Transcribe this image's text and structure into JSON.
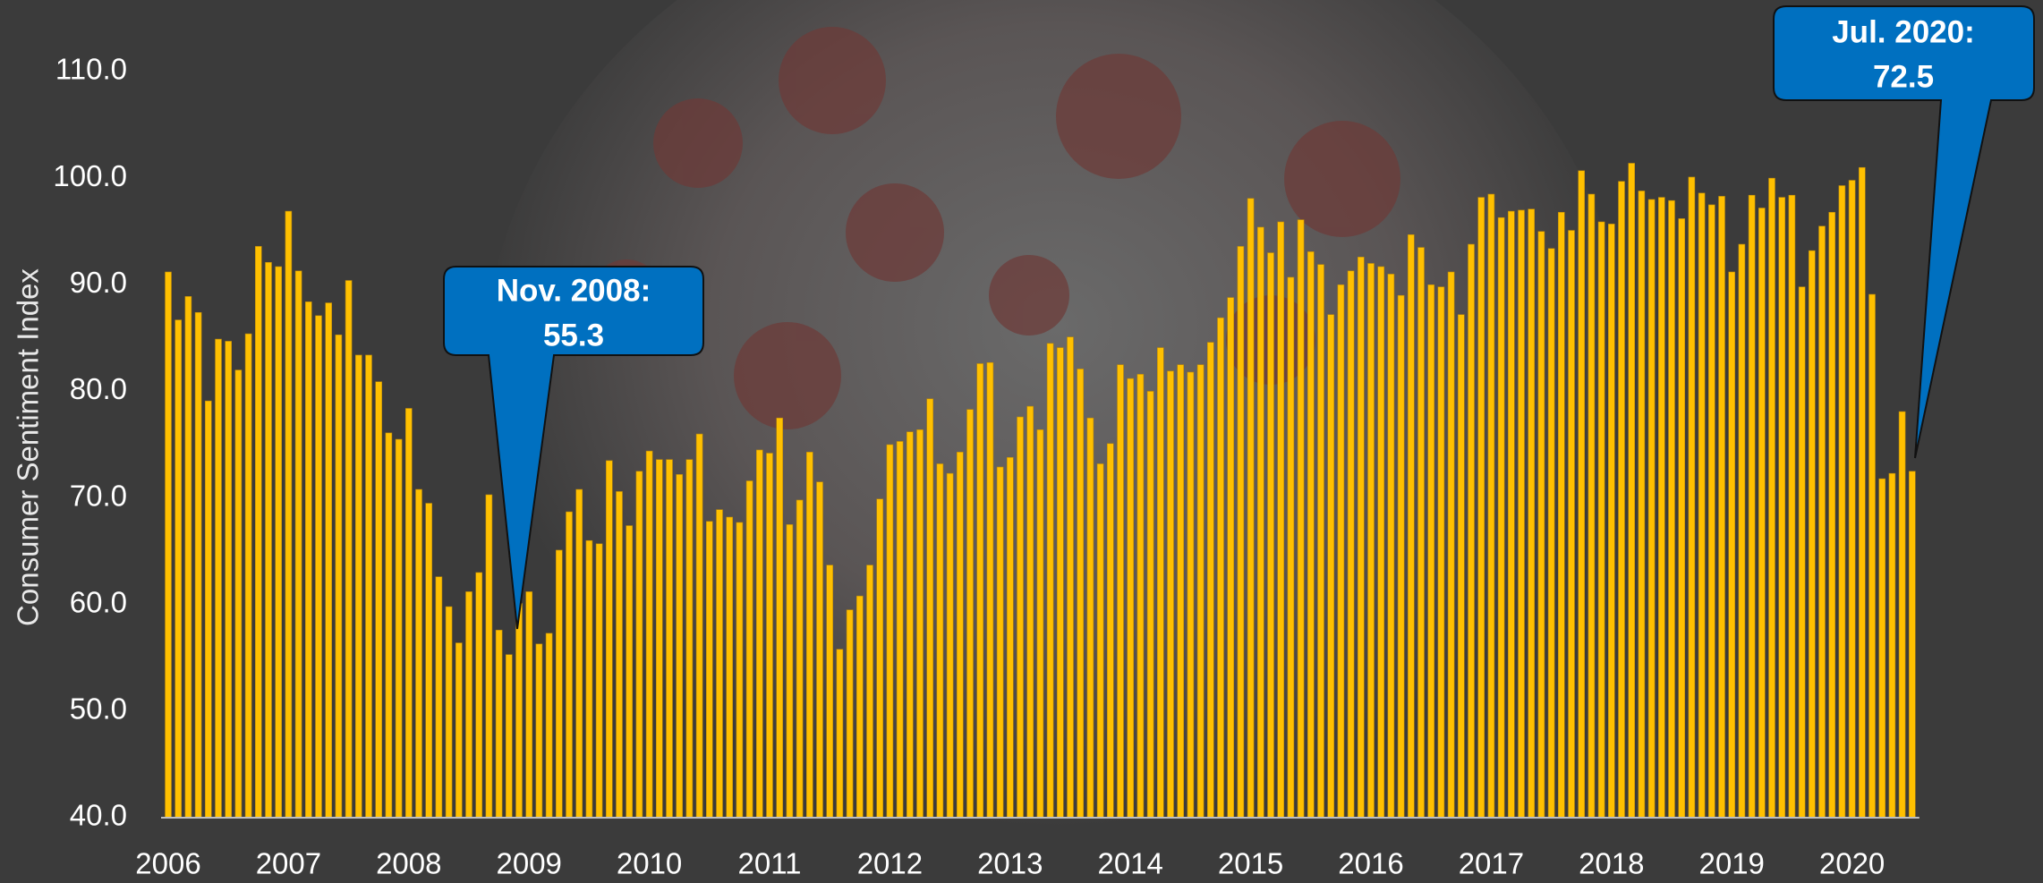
{
  "chart_data": {
    "type": "bar",
    "y_label": "Consumer Sentiment Index",
    "categories": [
      "2006",
      null,
      null,
      null,
      null,
      null,
      null,
      null,
      null,
      null,
      null,
      null,
      "2007",
      null,
      null,
      null,
      null,
      null,
      null,
      null,
      null,
      null,
      null,
      null,
      "2008",
      null,
      null,
      null,
      null,
      null,
      null,
      null,
      null,
      null,
      null,
      null,
      "2009",
      null,
      null,
      null,
      null,
      null,
      null,
      null,
      null,
      null,
      null,
      null,
      "2010",
      null,
      null,
      null,
      null,
      null,
      null,
      null,
      null,
      null,
      null,
      null,
      "2011",
      null,
      null,
      null,
      null,
      null,
      null,
      null,
      null,
      null,
      null,
      null,
      "2012",
      null,
      null,
      null,
      null,
      null,
      null,
      null,
      null,
      null,
      null,
      null,
      "2013",
      null,
      null,
      null,
      null,
      null,
      null,
      null,
      null,
      null,
      null,
      null,
      "2014",
      null,
      null,
      null,
      null,
      null,
      null,
      null,
      null,
      null,
      null,
      null,
      "2015",
      null,
      null,
      null,
      null,
      null,
      null,
      null,
      null,
      null,
      null,
      null,
      "2016",
      null,
      null,
      null,
      null,
      null,
      null,
      null,
      null,
      null,
      null,
      null,
      "2017",
      null,
      null,
      null,
      null,
      null,
      null,
      null,
      null,
      null,
      null,
      null,
      "2018",
      null,
      null,
      null,
      null,
      null,
      null,
      null,
      null,
      null,
      null,
      null,
      "2019",
      null,
      null,
      null,
      null,
      null,
      null,
      null,
      null,
      null,
      null,
      null,
      "2020",
      null,
      null,
      null,
      null,
      null,
      null
    ],
    "values": [
      91.2,
      86.7,
      88.9,
      87.4,
      79.1,
      84.9,
      84.7,
      82.0,
      85.4,
      93.6,
      92.1,
      91.7,
      96.9,
      91.3,
      88.4,
      87.1,
      88.3,
      85.3,
      90.4,
      83.4,
      83.4,
      80.9,
      76.1,
      75.5,
      78.4,
      70.8,
      69.5,
      62.6,
      59.8,
      56.4,
      61.2,
      63.0,
      70.3,
      57.6,
      55.3,
      60.1,
      61.2,
      56.3,
      57.3,
      65.1,
      68.7,
      70.8,
      66.0,
      65.7,
      73.5,
      70.6,
      67.4,
      72.5,
      74.4,
      73.6,
      73.6,
      72.2,
      73.6,
      76.0,
      67.8,
      68.9,
      68.2,
      67.7,
      71.6,
      74.5,
      74.2,
      77.5,
      67.5,
      69.8,
      74.3,
      71.5,
      63.7,
      55.8,
      59.5,
      60.8,
      63.7,
      69.9,
      75.0,
      75.3,
      76.2,
      76.4,
      79.3,
      73.2,
      72.3,
      74.3,
      78.3,
      82.6,
      82.7,
      72.9,
      73.8,
      77.6,
      78.6,
      76.4,
      84.5,
      84.1,
      85.1,
      82.1,
      77.5,
      73.2,
      75.1,
      82.5,
      81.2,
      81.6,
      80.0,
      84.1,
      81.9,
      82.5,
      81.8,
      82.5,
      84.6,
      86.9,
      88.8,
      93.6,
      98.1,
      95.4,
      93.0,
      95.9,
      90.7,
      96.1,
      93.1,
      91.9,
      87.2,
      90.0,
      91.3,
      92.6,
      92.0,
      91.7,
      91.0,
      89.0,
      94.7,
      93.5,
      90.0,
      89.8,
      91.2,
      87.2,
      93.8,
      98.2,
      98.5,
      96.3,
      96.9,
      97.0,
      97.1,
      95.0,
      93.4,
      96.8,
      95.1,
      100.7,
      98.5,
      95.9,
      95.7,
      99.7,
      101.4,
      98.8,
      98.0,
      98.2,
      97.9,
      96.2,
      100.1,
      98.6,
      97.5,
      98.3,
      91.2,
      93.8,
      98.4,
      97.2,
      100.0,
      98.2,
      98.4,
      89.8,
      93.2,
      95.5,
      96.8,
      99.3,
      99.8,
      101.0,
      89.1,
      71.8,
      72.3,
      78.1,
      72.5
    ],
    "color": "#ffc000",
    "ylim": [
      40,
      110
    ],
    "yticks": [
      {
        "value": 40,
        "label": "40.0"
      },
      {
        "value": 50,
        "label": "50.0"
      },
      {
        "value": 60,
        "label": "60.0"
      },
      {
        "value": 70,
        "label": "70.0"
      },
      {
        "value": 80,
        "label": "80.0"
      },
      {
        "value": 90,
        "label": "90.0"
      },
      {
        "value": 100,
        "label": "100.0"
      },
      {
        "value": 110,
        "label": "110.0"
      }
    ],
    "annotations": [
      {
        "lines": [
          "Nov. 2008:",
          "55.3"
        ]
      },
      {
        "lines": [
          "Jul. 2020:",
          "72.5"
        ]
      }
    ]
  }
}
